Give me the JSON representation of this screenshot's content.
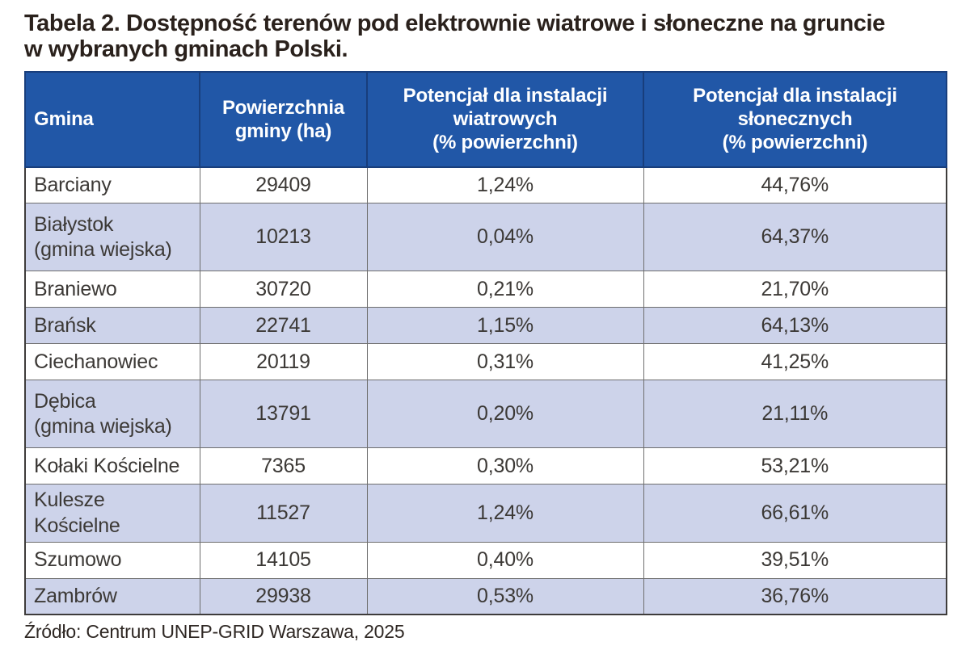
{
  "title": {
    "text": "Tabela 2. Dostępność terenów pod elektrownie wiatrowe i słoneczne na gruncie\nw wybranych gminach Polski."
  },
  "source": "Źródło: Centrum UNEP-GRID Warszawa, 2025",
  "colors": {
    "header_bg": "#2157a7",
    "header_border": "#183e7c",
    "row_alt_bg": "#cdd3ea",
    "row_bg": "#ffffff",
    "grid_border": "#6e6e6e",
    "outer_border": "#3e3c3b",
    "title_text": "#2a211c",
    "cell_text": "#3c3936"
  },
  "table": {
    "headers": [
      "Gmina",
      "Powierzchnia\ngminy (ha)",
      "Potencjał dla instalacji\nwiatrowych\n(% powierzchni)",
      "Potencjał dla instalacji\nsłonecznych\n(% powierzchni)"
    ],
    "rows": [
      {
        "gmina": "Barciany",
        "area_ha": "29409",
        "wind_pct": "1,24%",
        "solar_pct": "44,76%"
      },
      {
        "gmina": "Białystok\n(gmina wiejska)",
        "area_ha": "10213",
        "wind_pct": "0,04%",
        "solar_pct": "64,37%"
      },
      {
        "gmina": "Braniewo",
        "area_ha": "30720",
        "wind_pct": "0,21%",
        "solar_pct": "21,70%"
      },
      {
        "gmina": "Brańsk",
        "area_ha": "22741",
        "wind_pct": "1,15%",
        "solar_pct": "64,13%"
      },
      {
        "gmina": "Ciechanowiec",
        "area_ha": "20119",
        "wind_pct": "0,31%",
        "solar_pct": "41,25%"
      },
      {
        "gmina": "Dębica\n(gmina wiejska)",
        "area_ha": "13791",
        "wind_pct": "0,20%",
        "solar_pct": "21,11%"
      },
      {
        "gmina": "Kołaki Kościelne",
        "area_ha": "7365",
        "wind_pct": "0,30%",
        "solar_pct": "53,21%"
      },
      {
        "gmina": "Kulesze Kościelne",
        "area_ha": "11527",
        "wind_pct": "1,24%",
        "solar_pct": "66,61%"
      },
      {
        "gmina": "Szumowo",
        "area_ha": "14105",
        "wind_pct": "0,40%",
        "solar_pct": "39,51%"
      },
      {
        "gmina": "Zambrów",
        "area_ha": "29938",
        "wind_pct": "0,53%",
        "solar_pct": "36,76%"
      }
    ]
  },
  "chart_data": {
    "type": "table",
    "title": "Tabela 2. Dostępność terenów pod elektrownie wiatrowe i słoneczne na gruncie w wybranych gminach Polski.",
    "columns": [
      "Gmina",
      "Powierzchnia gminy (ha)",
      "Potencjał dla instalacji wiatrowych (% powierzchni)",
      "Potencjał dla instalacji słonecznych (% powierzchni)"
    ],
    "rows": [
      [
        "Barciany",
        29409,
        "1,24%",
        "44,76%"
      ],
      [
        "Białystok (gmina wiejska)",
        10213,
        "0,04%",
        "64,37%"
      ],
      [
        "Braniewo",
        30720,
        "0,21%",
        "21,70%"
      ],
      [
        "Brańsk",
        22741,
        "1,15%",
        "64,13%"
      ],
      [
        "Ciechanowiec",
        20119,
        "0,31%",
        "41,25%"
      ],
      [
        "Dębica (gmina wiejska)",
        13791,
        "0,20%",
        "21,11%"
      ],
      [
        "Kołaki Kościelne",
        7365,
        "0,30%",
        "53,21%"
      ],
      [
        "Kulesze Kościelne",
        11527,
        "1,24%",
        "66,61%"
      ],
      [
        "Szumowo",
        14105,
        "0,40%",
        "39,51%"
      ],
      [
        "Zambrów",
        29938,
        "0,53%",
        "36,76%"
      ]
    ],
    "source": "Źródło: Centrum UNEP-GRID Warszawa, 2025"
  }
}
